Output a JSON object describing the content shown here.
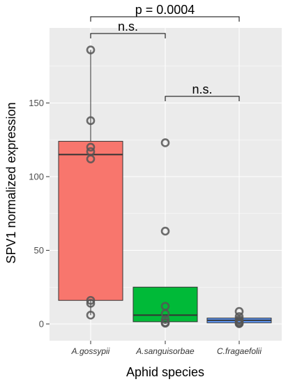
{
  "chart_data": {
    "type": "box",
    "xlabel": "Aphid species",
    "ylabel": "SPV1 normalized  expression",
    "yticks": [
      0,
      50,
      100,
      150
    ],
    "ylim": [
      -5,
      190
    ],
    "grid": true,
    "categories": [
      "A.gossypii",
      "A.sanguisorbae",
      "C.fragaefolii"
    ],
    "boxes": [
      {
        "name": "A.gossypii",
        "q1": 16,
        "median": 115,
        "q3": 124,
        "whisker_low": 6,
        "whisker_high": 186,
        "color": "#F8766D",
        "points": [
          186,
          138,
          120,
          117,
          112,
          16,
          14,
          6
        ]
      },
      {
        "name": "A.sanguisorbae",
        "q1": 1.5,
        "median": 6,
        "q3": 25,
        "whisker_low": 0.5,
        "whisker_high": 25,
        "color": "#00BA38",
        "points": [
          123,
          63,
          12,
          7,
          3,
          1,
          0.5
        ]
      },
      {
        "name": "C.fragaefolii",
        "q1": 0.8,
        "median": 2.5,
        "q3": 4,
        "whisker_low": 0.2,
        "whisker_high": 6,
        "color": "#619CFF",
        "points": [
          8.5,
          5,
          3,
          2,
          1,
          0.5,
          0.2
        ]
      }
    ],
    "annotations": [
      {
        "from": 0,
        "to": 1,
        "label": "n.s."
      },
      {
        "from": 1,
        "to": 2,
        "label": "n.s."
      },
      {
        "from": 0,
        "to": 2,
        "label": "p = 0.0004"
      }
    ]
  }
}
